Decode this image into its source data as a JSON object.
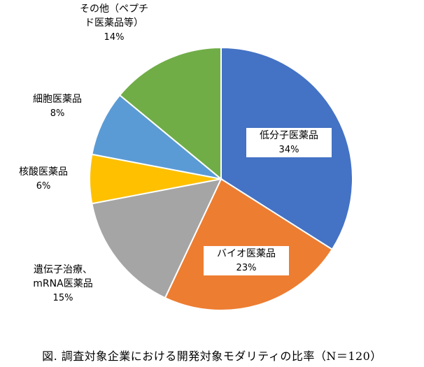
{
  "chart_data": {
    "type": "pie",
    "title": "",
    "start_angle_deg": 0,
    "direction": "clockwise",
    "slices": [
      {
        "label": [
          "低分子医薬品"
        ],
        "value": 34,
        "value_label": "34%",
        "color": "#4472C4",
        "label_inside": true
      },
      {
        "label": [
          "バイオ医薬品"
        ],
        "value": 23,
        "value_label": "23%",
        "color": "#ED7D31",
        "label_inside": true
      },
      {
        "label": [
          "遺伝子治療、",
          "mRNA医薬品"
        ],
        "value": 15,
        "value_label": "15%",
        "color": "#A5A5A5",
        "label_inside": false
      },
      {
        "label": [
          "核酸医薬品"
        ],
        "value": 6,
        "value_label": "6%",
        "color": "#FFC000",
        "label_inside": false
      },
      {
        "label": [
          "細胞医薬品"
        ],
        "value": 8,
        "value_label": "8%",
        "color": "#5B9BD5",
        "label_inside": false
      },
      {
        "label": [
          "その他（ペプチ",
          "ド医薬品等）"
        ],
        "value": 14,
        "value_label": "14%",
        "color": "#70AD47",
        "label_inside": false
      }
    ]
  },
  "caption": "図. 調査対象企業における開発対象モダリティの比率（N＝120）"
}
